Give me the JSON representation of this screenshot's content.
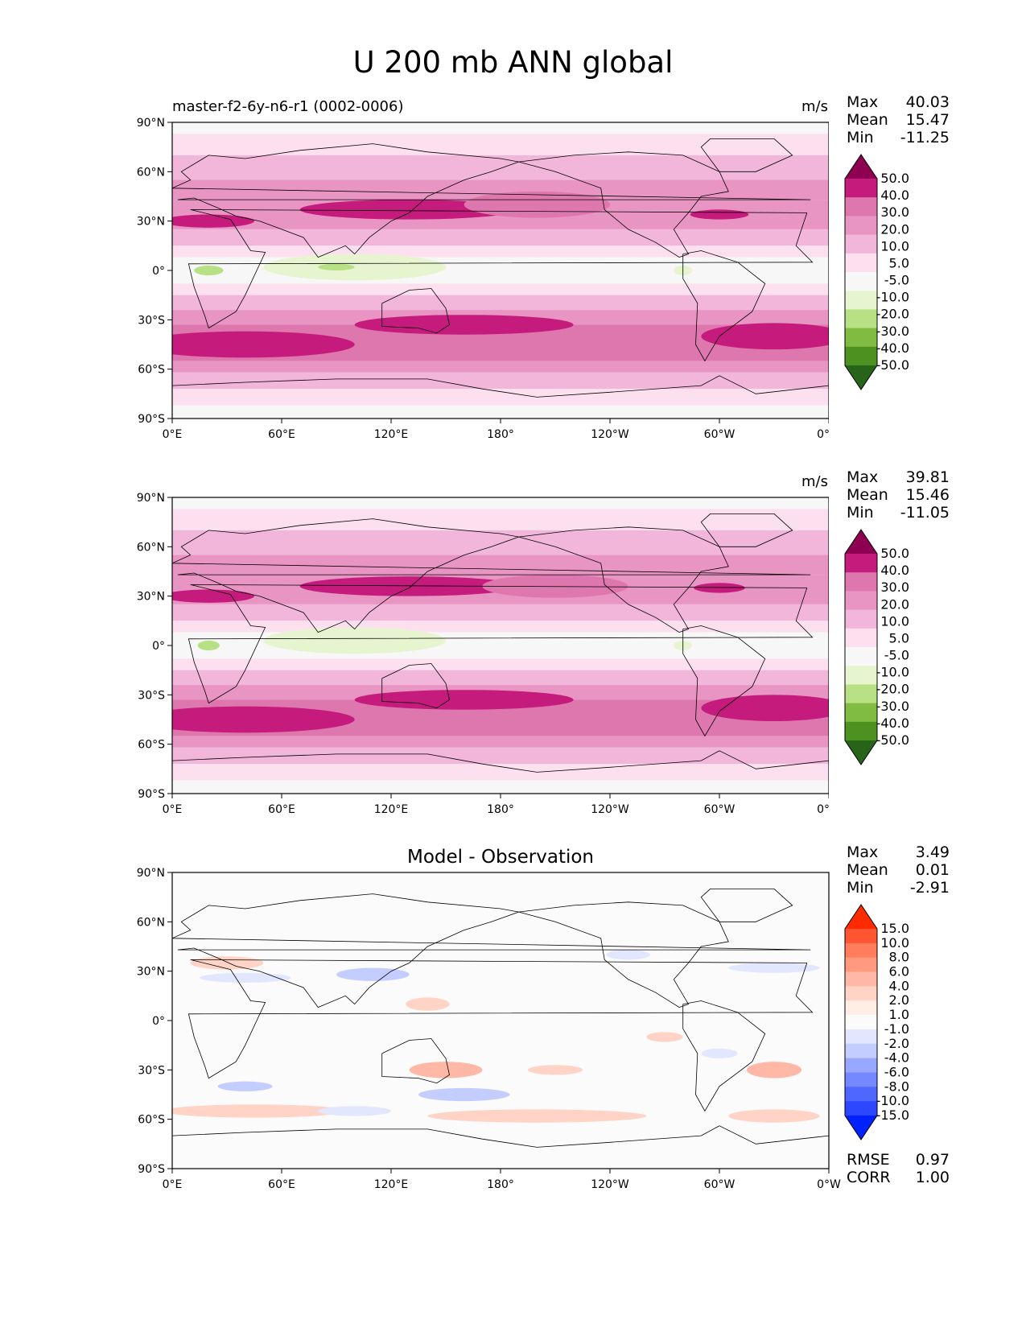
{
  "title": "U 200 mb ANN global",
  "lat_ticks": [
    "90°N",
    "60°N",
    "30°N",
    "0°",
    "30°S",
    "60°S",
    "90°S"
  ],
  "lon_ticks": [
    "0°E",
    "60°E",
    "120°E",
    "180°",
    "120°W",
    "60°W",
    "0°W"
  ],
  "panels": [
    {
      "case_label": "master-f2-6y-n6-r1 (0002-0006)",
      "title": "",
      "units": "m/s",
      "stats": {
        "max_label": "Max",
        "max": "40.03",
        "mean_label": "Mean",
        "mean": "15.47",
        "min_label": "Min",
        "min": "-11.25"
      },
      "colorbar": {
        "labels": [
          "50.0",
          "40.0",
          "30.0",
          "20.0",
          "10.0",
          "5.0",
          "-5.0",
          "-10.0",
          "-20.0",
          "-30.0",
          "-40.0",
          "-50.0"
        ],
        "colors": [
          "#8e0152",
          "#c51b7d",
          "#de77ae",
          "#e995c4",
          "#f1b6da",
          "#fde0ef",
          "#f7f7f7",
          "#e6f5d0",
          "#b8e186",
          "#7fbc41",
          "#4d9221",
          "#276419"
        ]
      }
    },
    {
      "case_label": "",
      "title": "",
      "units": "m/s",
      "stats": {
        "max_label": "Max",
        "max": "39.81",
        "mean_label": "Mean",
        "mean": "15.46",
        "min_label": "Min",
        "min": "-11.05"
      },
      "colorbar": {
        "labels": [
          "50.0",
          "40.0",
          "30.0",
          "20.0",
          "10.0",
          "5.0",
          "-5.0",
          "-10.0",
          "-20.0",
          "-30.0",
          "-40.0",
          "-50.0"
        ],
        "colors": [
          "#8e0152",
          "#c51b7d",
          "#de77ae",
          "#e995c4",
          "#f1b6da",
          "#fde0ef",
          "#f7f7f7",
          "#e6f5d0",
          "#b8e186",
          "#7fbc41",
          "#4d9221",
          "#276419"
        ]
      }
    },
    {
      "case_label": "",
      "title": "Model - Observation",
      "units": "",
      "stats": {
        "max_label": "Max",
        "max": "3.49",
        "mean_label": "Mean",
        "mean": "0.01",
        "min_label": "Min",
        "min": "-2.91",
        "rmse_label": "RMSE",
        "rmse": "0.97",
        "corr_label": "CORR",
        "corr": "1.00"
      },
      "colorbar": {
        "labels": [
          "15.0",
          "10.0",
          "8.0",
          "6.0",
          "4.0",
          "2.0",
          "1.0",
          "-1.0",
          "-2.0",
          "-4.0",
          "-6.0",
          "-8.0",
          "-10.0",
          "-15.0"
        ],
        "colors": [
          "#ff2a00",
          "#ff5533",
          "#ff7c5c",
          "#ff9a80",
          "#ffb8a6",
          "#ffd3c6",
          "#ffede6",
          "#fbfbfb",
          "#e2e7ff",
          "#c3cdff",
          "#99a8ff",
          "#7588ff",
          "#4f66ff",
          "#2c47ff",
          "#0022ff"
        ]
      }
    }
  ],
  "chart_data": [
    {
      "type": "heatmap",
      "variable": "U 200 mb",
      "units": "m/s",
      "case": "master-f2-6y-n6-r1 (0002-0006)",
      "x": [
        "0°E",
        "60°E",
        "120°E",
        "180°",
        "120°W",
        "60°W",
        "0°W"
      ],
      "y": [
        "90°N",
        "60°N",
        "30°N",
        "0°",
        "30°S",
        "60°S",
        "90°S"
      ],
      "xlim": [
        0,
        360
      ],
      "ylim": [
        -90,
        90
      ],
      "levels": [
        -50,
        -40,
        -30,
        -20,
        -10,
        -5,
        5,
        10,
        20,
        30,
        40,
        50
      ],
      "max": 40.03,
      "mean": 15.47,
      "min": -11.25
    },
    {
      "type": "heatmap",
      "variable": "U 200 mb",
      "units": "m/s",
      "x": [
        "0°E",
        "60°E",
        "120°E",
        "180°",
        "120°W",
        "60°W",
        "0°W"
      ],
      "y": [
        "90°N",
        "60°N",
        "30°N",
        "0°",
        "30°S",
        "60°S",
        "90°S"
      ],
      "xlim": [
        0,
        360
      ],
      "ylim": [
        -90,
        90
      ],
      "levels": [
        -50,
        -40,
        -30,
        -20,
        -10,
        -5,
        5,
        10,
        20,
        30,
        40,
        50
      ],
      "max": 39.81,
      "mean": 15.46,
      "min": -11.05
    },
    {
      "type": "heatmap",
      "title": "Model - Observation",
      "x": [
        "0°E",
        "60°E",
        "120°E",
        "180°",
        "120°W",
        "60°W",
        "0°W"
      ],
      "y": [
        "90°N",
        "60°N",
        "30°N",
        "0°",
        "30°S",
        "60°S",
        "90°S"
      ],
      "xlim": [
        0,
        360
      ],
      "ylim": [
        -90,
        90
      ],
      "levels": [
        -15,
        -10,
        -8,
        -6,
        -4,
        -2,
        -1,
        1,
        2,
        4,
        6,
        8,
        10,
        15
      ],
      "max": 3.49,
      "mean": 0.01,
      "min": -2.91,
      "rmse": 0.97,
      "corr": 1.0
    }
  ]
}
